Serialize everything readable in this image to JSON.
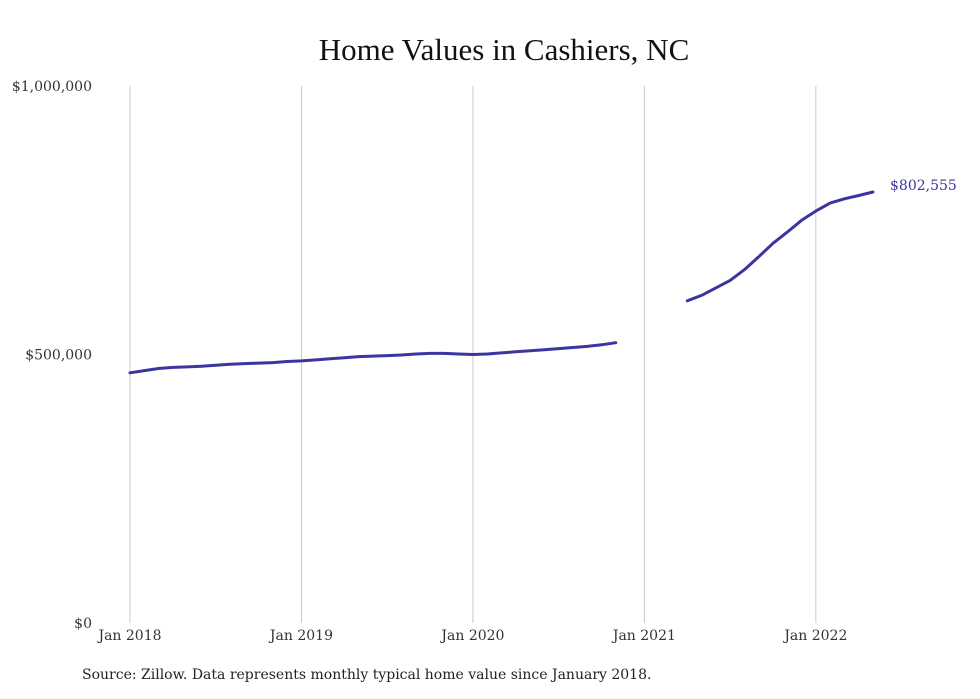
{
  "chart_data": {
    "type": "line",
    "title": "Home Values in Cashiers, NC",
    "xlabel": "",
    "ylabel": "",
    "x_ticks": [
      "Jan 2018",
      "Jan 2019",
      "Jan 2020",
      "Jan 2021",
      "Jan 2022"
    ],
    "y_ticks": [
      "$0",
      "$500,000",
      "$1,000,000"
    ],
    "ylim": [
      0,
      1000000
    ],
    "xlim": [
      "2018-01",
      "2022-05"
    ],
    "grid": "vertical",
    "color": "#3b35a0",
    "end_label": "$802,555",
    "series": [
      {
        "segments": [
          [
            [
              "2018-01",
              466000
            ],
            [
              "2018-02",
              470000
            ],
            [
              "2018-03",
              474000
            ],
            [
              "2018-04",
              476000
            ],
            [
              "2018-05",
              477000
            ],
            [
              "2018-06",
              478000
            ],
            [
              "2018-07",
              480000
            ],
            [
              "2018-08",
              482000
            ],
            [
              "2018-09",
              483000
            ],
            [
              "2018-10",
              484000
            ],
            [
              "2018-11",
              485000
            ],
            [
              "2018-12",
              487000
            ],
            [
              "2019-01",
              488000
            ],
            [
              "2019-02",
              490000
            ],
            [
              "2019-03",
              492000
            ],
            [
              "2019-04",
              494000
            ],
            [
              "2019-05",
              496000
            ],
            [
              "2019-06",
              497000
            ],
            [
              "2019-07",
              498000
            ],
            [
              "2019-08",
              499000
            ],
            [
              "2019-09",
              501000
            ],
            [
              "2019-10",
              502000
            ],
            [
              "2019-11",
              502000
            ],
            [
              "2019-12",
              501000
            ],
            [
              "2020-01",
              500000
            ],
            [
              "2020-02",
              501000
            ],
            [
              "2020-03",
              503000
            ],
            [
              "2020-04",
              505000
            ],
            [
              "2020-05",
              507000
            ],
            [
              "2020-06",
              509000
            ],
            [
              "2020-07",
              511000
            ],
            [
              "2020-08",
              513000
            ],
            [
              "2020-09",
              515000
            ],
            [
              "2020-10",
              518000
            ],
            [
              "2020-11",
              522000
            ]
          ],
          [
            [
              "2021-04",
              600000
            ],
            [
              "2021-05",
              610000
            ],
            [
              "2021-06",
              624000
            ],
            [
              "2021-07",
              638000
            ],
            [
              "2021-08",
              658000
            ],
            [
              "2021-09",
              682000
            ],
            [
              "2021-10",
              707000
            ],
            [
              "2021-11",
              728000
            ],
            [
              "2021-12",
              750000
            ],
            [
              "2022-01",
              767000
            ],
            [
              "2022-02",
              782000
            ],
            [
              "2022-03",
              790000
            ],
            [
              "2022-04",
              796000
            ],
            [
              "2022-05",
              802555
            ]
          ]
        ]
      }
    ],
    "source": "Source: Zillow. Data represents monthly typical home value since January 2018."
  }
}
